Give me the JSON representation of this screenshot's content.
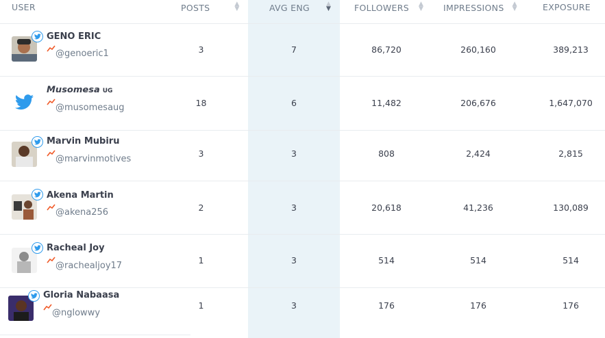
{
  "headers": {
    "user": "USER",
    "posts": "POSTS",
    "avg_eng": "AVG ENG",
    "followers": "FOLLOWERS",
    "impressions": "IMPRESSIONS",
    "exposure": "EXPOSURE"
  },
  "sorted_column": "avg_eng",
  "colors": {
    "twitter": "#2f9bec",
    "trend": "#f05a28",
    "sorted_bg": "#eaf3f8"
  },
  "rows": [
    {
      "name": "GENO ERIC",
      "name_suffix": "",
      "handle": "@genoeric1",
      "avatar": "photo-avatar",
      "posts": "3",
      "avg_eng": "7",
      "followers": "86,720",
      "impressions": "260,160",
      "exposure": "389,213"
    },
    {
      "name": "𝙈𝙪𝙨𝙤𝙢𝙚𝙨𝙖",
      "name_suffix": "UG",
      "handle": "@musomesaug",
      "avatar": "twitter-bird-avatar",
      "posts": "18",
      "avg_eng": "6",
      "followers": "11,482",
      "impressions": "206,676",
      "exposure": "1,647,070"
    },
    {
      "name": "Marvin Mubiru",
      "name_suffix": "",
      "handle": "@marvinmotives",
      "avatar": "photo-avatar",
      "posts": "3",
      "avg_eng": "3",
      "followers": "808",
      "impressions": "2,424",
      "exposure": "2,815"
    },
    {
      "name": "Akena Martin",
      "name_suffix": "",
      "handle": "@akena256",
      "avatar": "photo-avatar",
      "posts": "2",
      "avg_eng": "3",
      "followers": "20,618",
      "impressions": "41,236",
      "exposure": "130,089"
    },
    {
      "name": "Racheal Joy",
      "name_suffix": "",
      "handle": "@rachealjoy17",
      "avatar": "photo-avatar",
      "posts": "1",
      "avg_eng": "3",
      "followers": "514",
      "impressions": "514",
      "exposure": "514"
    },
    {
      "name": "Gloria Nabaasa",
      "name_suffix": "",
      "handle": "@nglowwy",
      "avatar": "photo-avatar",
      "posts": "1",
      "avg_eng": "3",
      "followers": "176",
      "impressions": "176",
      "exposure": "176"
    }
  ]
}
